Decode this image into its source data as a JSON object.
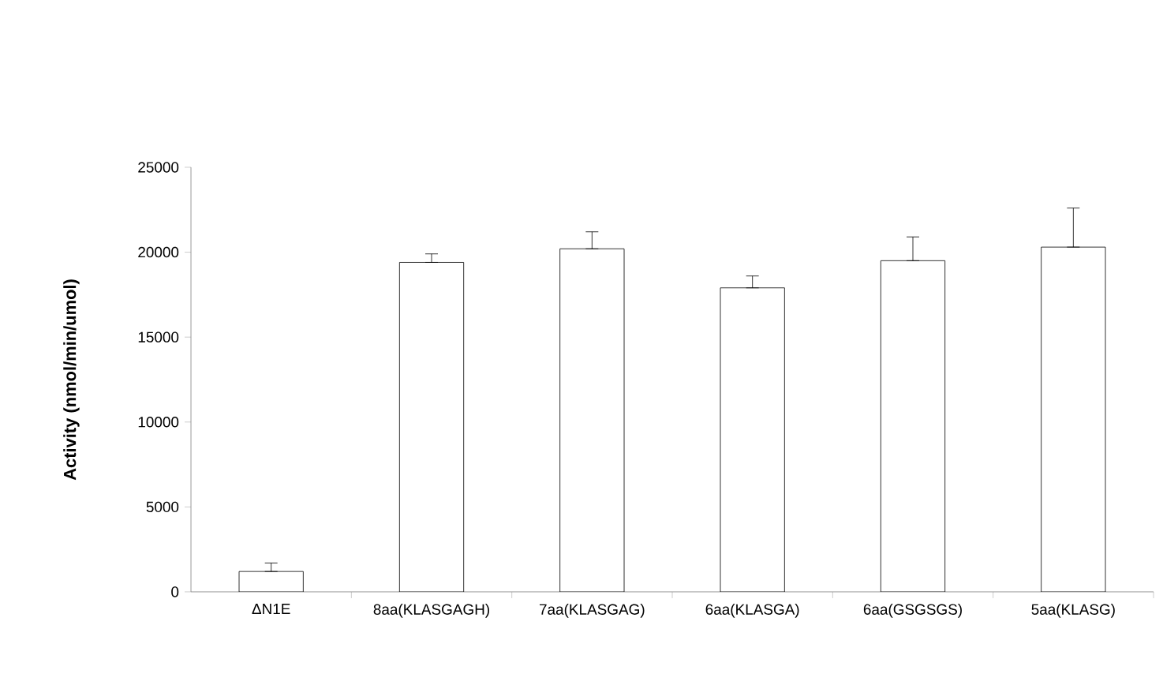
{
  "chart_data": {
    "type": "bar",
    "ylabel": "Activity (nmol/min/umol)",
    "categories": [
      "ΔN1E",
      "8aa(KLASGAGH)",
      "7aa(KLASGAG)",
      "6aa(KLASGA)",
      "6aa(GSGSGS)",
      "5aa(KLASG)"
    ],
    "values": [
      1200,
      19400,
      20200,
      17900,
      19500,
      20300
    ],
    "errors": [
      [
        1200,
        1700
      ],
      [
        19400,
        19900
      ],
      [
        20200,
        21200
      ],
      [
        17900,
        18600
      ],
      [
        19500,
        20900
      ],
      [
        20300,
        22600
      ]
    ],
    "color": "#ffffff",
    "ylim": [
      0,
      25000
    ],
    "yticks": [
      0,
      5000,
      10000,
      15000,
      20000,
      25000
    ],
    "grid": false
  }
}
